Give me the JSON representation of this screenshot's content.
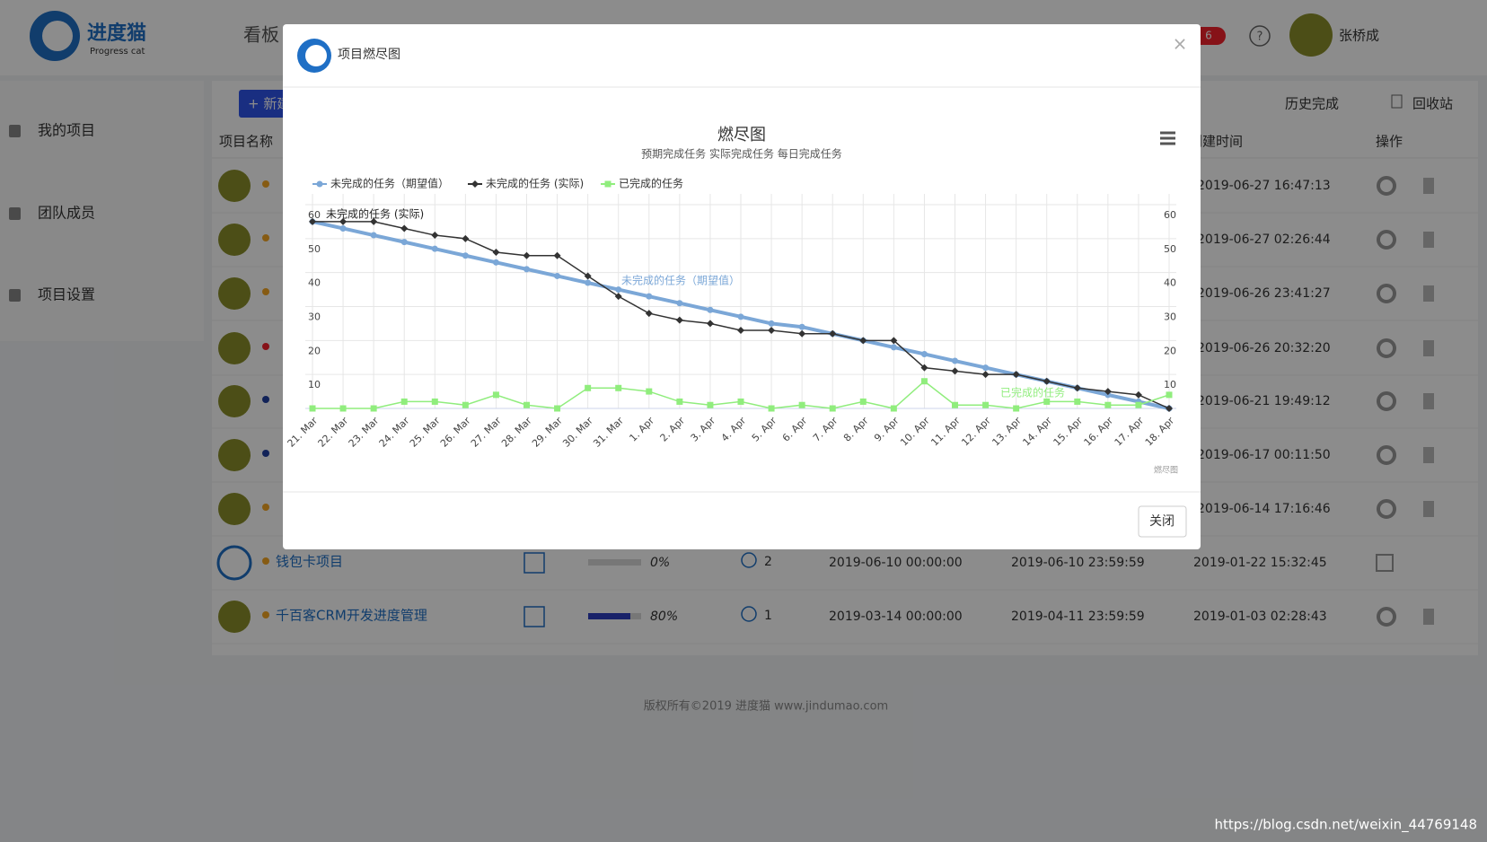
{
  "header": {
    "logo_title": "进度猫",
    "logo_subtitle": "Progress cat",
    "nav": "看板",
    "badge": "6",
    "help": "?",
    "user": "张桥成"
  },
  "sidebar": [
    "我的项目",
    "团队成员",
    "项目设置"
  ],
  "toolbar": {
    "new": "+ 新建",
    "history": "历史完成",
    "recycle": "回收站"
  },
  "table": {
    "headers": [
      "项目名称",
      "创建时间",
      "操作"
    ],
    "created_times": [
      "2019-06-27 16:47:13",
      "2019-06-27 02:26:44",
      "2019-06-26 23:41:27",
      "2019-06-26 20:32:20",
      "2019-06-21 19:49:12",
      "2019-06-17 00:11:50",
      "2019-06-14 17:16:46"
    ],
    "rows": [
      {
        "name": "钱包卡项目",
        "progress": "0%",
        "members": "2",
        "start": "2019-06-10 00:00:00",
        "end": "2019-06-10 23:59:59",
        "created": "2019-01-22 15:32:45"
      },
      {
        "name": "千百客CRM开发进度管理",
        "progress": "80%",
        "members": "1",
        "start": "2019-03-14 00:00:00",
        "end": "2019-04-11 23:59:59",
        "created": "2019-01-03 02:28:43"
      }
    ]
  },
  "footer": "版权所有©2019 进度猫 www.jindumao.com",
  "watermark": "https://blog.csdn.net/weixin_44769148",
  "modal": {
    "title": "项目燃尽图",
    "close_x": "×",
    "close_button": "关闭"
  },
  "chart_data": {
    "type": "line",
    "title": "燃尽图",
    "subtitle": "预期完成任务 实际完成任务 每日完成任务",
    "credits": "燃尽图",
    "categories": [
      "21. Mar",
      "22. Mar",
      "23. Mar",
      "24. Mar",
      "25. Mar",
      "26. Mar",
      "27. Mar",
      "28. Mar",
      "29. Mar",
      "30. Mar",
      "31. Mar",
      "1. Apr",
      "2. Apr",
      "3. Apr",
      "4. Apr",
      "5. Apr",
      "6. Apr",
      "7. Apr",
      "8. Apr",
      "9. Apr",
      "10. Apr",
      "11. Apr",
      "12. Apr",
      "13. Apr",
      "14. Apr",
      "15. Apr",
      "16. Apr",
      "17. Apr",
      "18. Apr"
    ],
    "series": [
      {
        "name": "未完成的任务（期望值）",
        "color": "#7ba7d7",
        "marker": "circle",
        "values": [
          55,
          53,
          51,
          49,
          47,
          45,
          43,
          41,
          39,
          37,
          35,
          33,
          31,
          29,
          27,
          25,
          24,
          22,
          20,
          18,
          16,
          14,
          12,
          10,
          8,
          6,
          4,
          2,
          0
        ]
      },
      {
        "name": "未完成的任务 (实际)",
        "color": "#333333",
        "marker": "diamond",
        "values": [
          55,
          55,
          55,
          53,
          51,
          50,
          46,
          45,
          45,
          39,
          33,
          28,
          26,
          25,
          23,
          23,
          22,
          22,
          20,
          20,
          12,
          11,
          10,
          10,
          8,
          6,
          5,
          4,
          0
        ]
      },
      {
        "name": "已完成的任务",
        "color": "#90ed7d",
        "marker": "square",
        "values": [
          0,
          0,
          0,
          2,
          2,
          1,
          4,
          1,
          0,
          6,
          6,
          5,
          2,
          1,
          2,
          0,
          1,
          0,
          2,
          0,
          8,
          1,
          1,
          0,
          2,
          2,
          1,
          1,
          4
        ]
      }
    ],
    "ylim": [
      0,
      60
    ],
    "yticks": [
      10,
      20,
      30,
      40,
      50,
      60
    ],
    "y2lim": [
      0,
      60
    ],
    "y2ticks": [
      10,
      20,
      30,
      40,
      50,
      60
    ],
    "grid": true,
    "legend": "top-left"
  }
}
